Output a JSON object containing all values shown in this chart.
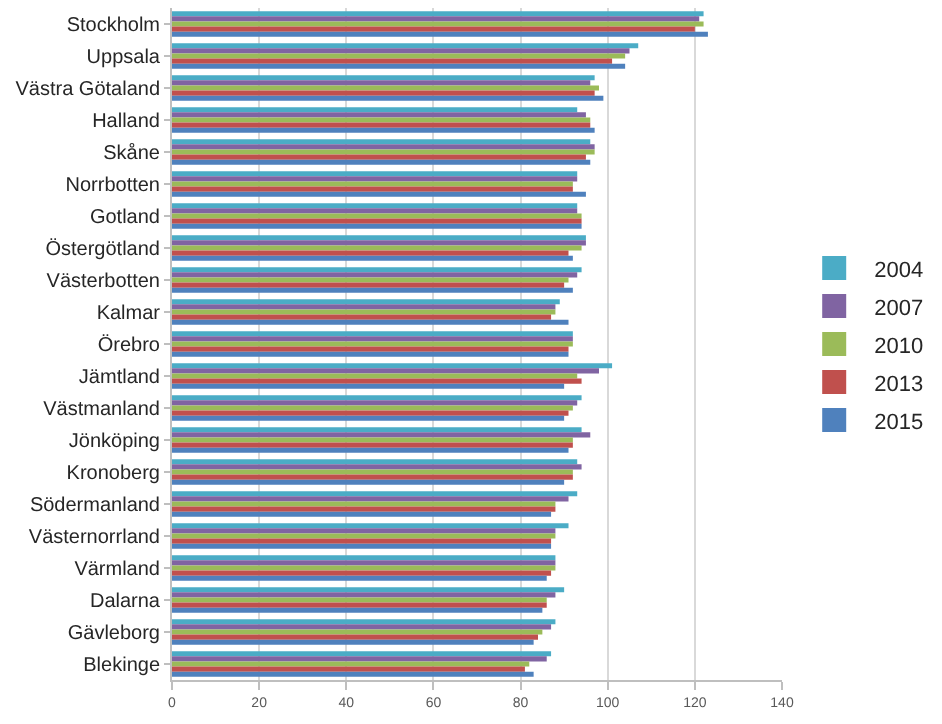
{
  "chart_data": {
    "type": "bar",
    "orientation": "horizontal",
    "categories": [
      "Stockholm",
      "Uppsala",
      "Västra Götaland",
      "Halland",
      "Skåne",
      "Norrbotten",
      "Gotland",
      "Östergötland",
      "Västerbotten",
      "Kalmar",
      "Örebro",
      "Jämtland",
      "Västmanland",
      "Jönköping",
      "Kronoberg",
      "Södermanland",
      "Västernorrland",
      "Värmland",
      "Dalarna",
      "Gävleborg",
      "Blekinge"
    ],
    "series": [
      {
        "name": "2004",
        "color": "#4bacc6",
        "values": [
          122,
          107,
          97,
          93,
          96,
          93,
          93,
          95,
          94,
          89,
          92,
          101,
          94,
          94,
          93,
          93,
          91,
          88,
          90,
          88,
          87
        ]
      },
      {
        "name": "2007",
        "color": "#8064a2",
        "values": [
          121,
          105,
          96,
          95,
          97,
          93,
          93,
          95,
          93,
          88,
          92,
          98,
          93,
          96,
          94,
          91,
          88,
          88,
          88,
          87,
          86
        ]
      },
      {
        "name": "2010",
        "color": "#9bbb59",
        "values": [
          122,
          104,
          98,
          96,
          97,
          92,
          94,
          94,
          91,
          88,
          92,
          93,
          92,
          92,
          92,
          88,
          88,
          88,
          86,
          85,
          82
        ]
      },
      {
        "name": "2013",
        "color": "#c0504d",
        "values": [
          120,
          101,
          97,
          96,
          95,
          92,
          94,
          91,
          90,
          87,
          91,
          94,
          91,
          92,
          92,
          88,
          87,
          87,
          86,
          84,
          81
        ]
      },
      {
        "name": "2015",
        "color": "#4f81bd",
        "values": [
          123,
          104,
          99,
          97,
          96,
          95,
          94,
          92,
          92,
          91,
          91,
          90,
          90,
          91,
          90,
          87,
          87,
          86,
          85,
          83,
          83
        ]
      }
    ],
    "xlim": [
      0,
      140
    ],
    "xticks": [
      0,
      20,
      40,
      60,
      80,
      100,
      120,
      140
    ],
    "grid": "x",
    "legend": "right"
  }
}
